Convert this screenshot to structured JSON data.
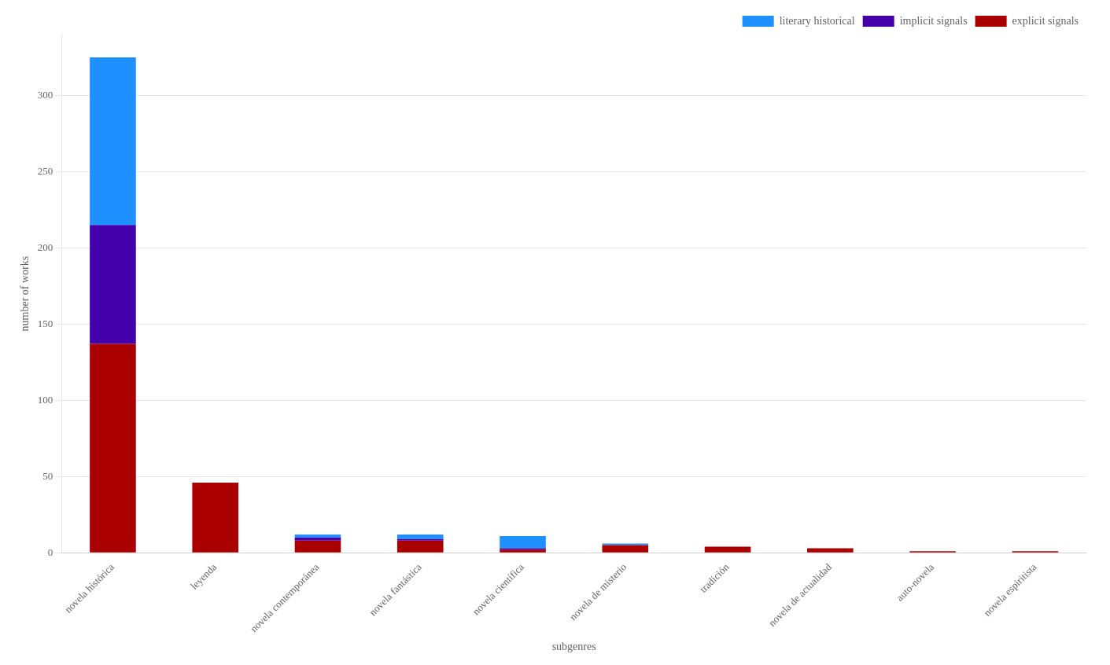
{
  "chart_data": {
    "type": "bar",
    "stacked": true,
    "xlabel": "subgenres",
    "ylabel": "number of works",
    "categories": [
      "novela histórica",
      "leyenda",
      "novela contemporánea",
      "novela fantástica",
      "novela científica",
      "novela de misterio",
      "tradición",
      "novela de actualidad",
      "auto-novela",
      "novela espiritista"
    ],
    "series": [
      {
        "name": "explicit signals",
        "color": "#aa0000",
        "values": [
          137,
          46,
          8,
          8,
          2,
          5,
          4,
          3,
          1,
          1
        ]
      },
      {
        "name": "implicit signals",
        "color": "#4400aa",
        "values": [
          78,
          0,
          2,
          1,
          1,
          0,
          0,
          0,
          0,
          0
        ]
      },
      {
        "name": "literary historical",
        "color": "#1e90ff",
        "values": [
          110,
          0,
          2,
          3,
          8,
          1,
          0,
          0,
          0,
          0
        ]
      }
    ],
    "ylim": [
      0,
      340
    ],
    "yticks": [
      0,
      50,
      100,
      150,
      200,
      250,
      300
    ],
    "grid": true,
    "legend": "upper right"
  }
}
